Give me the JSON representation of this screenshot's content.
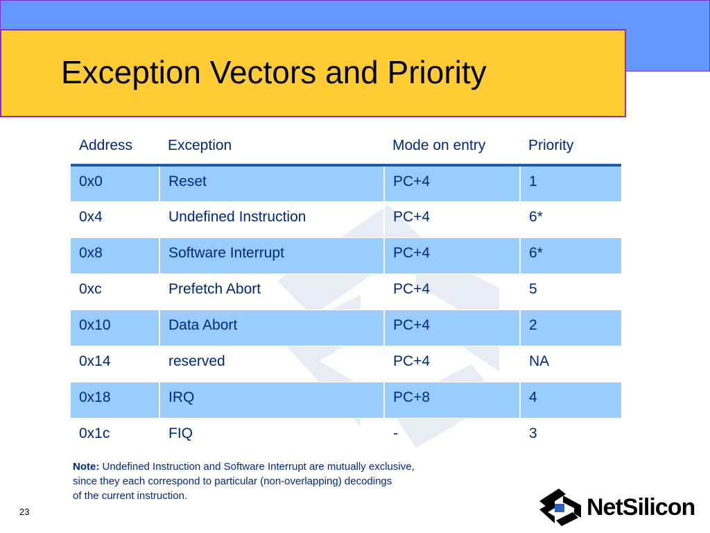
{
  "slide": {
    "title": "Exception Vectors and Priority",
    "page_number": "23",
    "colors": {
      "title_band": "#ffcc33",
      "top_band": "#6699ff",
      "border": "#7a33cc",
      "table_text": "#002680",
      "row_highlight": "#99ccff"
    }
  },
  "table": {
    "headers": [
      "Address",
      "Exception",
      "Mode on entry",
      "Priority"
    ],
    "rows": [
      [
        "0x0",
        "Reset",
        "PC+4",
        "1"
      ],
      [
        "0x4",
        "Undefined Instruction",
        "PC+4",
        "6*"
      ],
      [
        "0x8",
        "Software Interrupt",
        "PC+4",
        "6*"
      ],
      [
        "0xc",
        "Prefetch Abort",
        "PC+4",
        "5"
      ],
      [
        "0x10",
        "Data Abort",
        "PC+4",
        "2"
      ],
      [
        "0x14",
        "reserved",
        "PC+4",
        "NA"
      ],
      [
        "0x18",
        "IRQ",
        "PC+8",
        "4"
      ],
      [
        "0x1c",
        "FIQ",
        "-",
        "3"
      ]
    ]
  },
  "note": {
    "label": "Note:",
    "line1": " Undefined Instruction and  Software Interrupt are mutually exclusive,",
    "line2": "since they each correspond to particular (non-overlapping) decodings",
    "line3": "of the current instruction."
  },
  "logo": {
    "text": "NetSilicon",
    "icon": "netsilicon-logo-icon"
  }
}
